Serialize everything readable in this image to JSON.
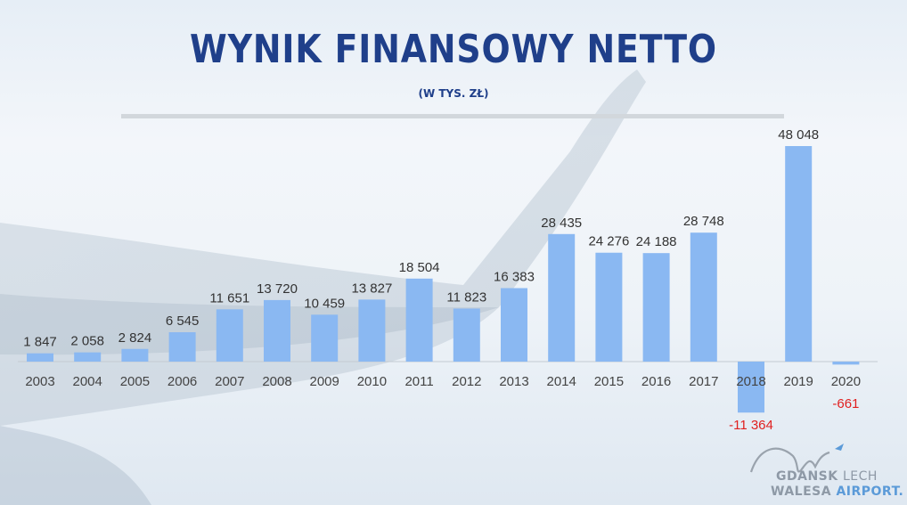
{
  "title": "WYNIK FINANSOWY NETTO",
  "subtitle": "(W TYS. ZŁ)",
  "colors": {
    "bar": "#8ab8f2",
    "label_positive": "#333333",
    "label_negative": "#e02020",
    "title": "#1f3f8a"
  },
  "chart_data": {
    "type": "bar",
    "title": "WYNIK FINANSOWY NETTO",
    "subtitle": "(W TYS. ZŁ)",
    "categories": [
      "2003",
      "2004",
      "2005",
      "2006",
      "2007",
      "2008",
      "2009",
      "2010",
      "2011",
      "2012",
      "2013",
      "2014",
      "2015",
      "2016",
      "2017",
      "2018",
      "2019",
      "2020"
    ],
    "values": [
      1847,
      2058,
      2824,
      6545,
      11651,
      13720,
      10459,
      13827,
      18504,
      11823,
      16383,
      28435,
      24276,
      24188,
      28748,
      -11364,
      48048,
      -661
    ],
    "value_labels": [
      "1 847",
      "2 058",
      "2 824",
      "6 545",
      "11 651",
      "13 720",
      "10 459",
      "13 827",
      "18 504",
      "11 823",
      "16 383",
      "28 435",
      "24 276",
      "24 188",
      "28 748",
      "-11 364",
      "48 048",
      "-661"
    ],
    "xlabel": "",
    "ylabel": "",
    "grid": false,
    "legend": "none"
  },
  "logo": {
    "line1_a": "GDANSK",
    "line1_b": "LECH",
    "line2_a": "WALESA",
    "line2_b": "AIRPORT."
  }
}
